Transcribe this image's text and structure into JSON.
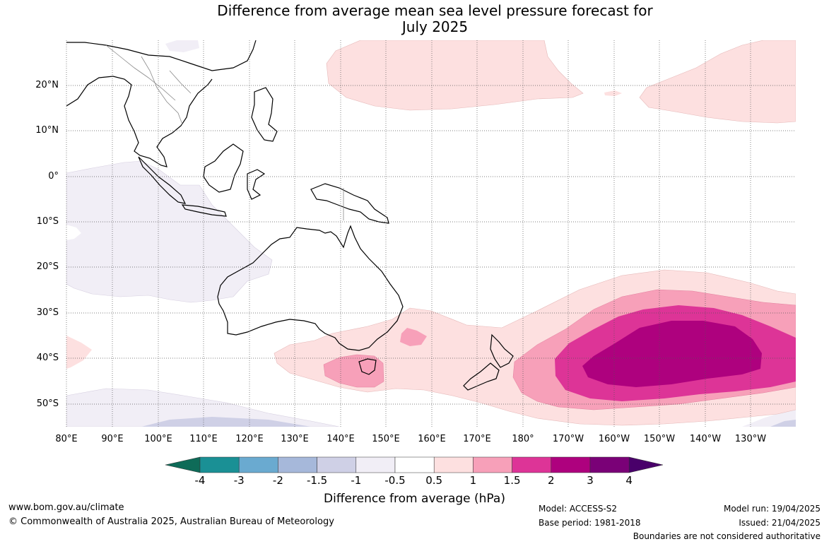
{
  "title_line1": "Difference from average mean sea level pressure forecast for",
  "title_line2": "July 2025",
  "lat_labels": [
    "20°N",
    "10°N",
    "0°",
    "10°S",
    "20°S",
    "30°S",
    "40°S",
    "50°S"
  ],
  "lon_labels": [
    "80°E",
    "90°E",
    "100°E",
    "110°E",
    "120°E",
    "130°E",
    "140°E",
    "150°E",
    "160°E",
    "170°E",
    "180°",
    "170°W",
    "160°W",
    "150°W",
    "140°W",
    "130°W"
  ],
  "colorbar": {
    "ticks": [
      "-4",
      "-3",
      "-2",
      "-1.5",
      "-1",
      "-0.5",
      "0.5",
      "1",
      "1.5",
      "2",
      "3",
      "4"
    ],
    "colors": [
      "#0e6b58",
      "#1a9095",
      "#6aaad0",
      "#a6b8da",
      "#cfd0e6",
      "#f1eef6",
      "#ffffff",
      "#fde0e0",
      "#f7a0b9",
      "#dd3497",
      "#ae017e",
      "#7a0177",
      "#49006a"
    ],
    "label": "Difference from average (hPa)"
  },
  "footer": {
    "website": "www.bom.gov.au/climate",
    "copyright": "© Commonwealth of Australia 2025, Australian Bureau of Meteorology",
    "model": "Model: ACCESS-S2",
    "base_period": "Base period: 1981-2018",
    "model_run": "Model run: 19/04/2025",
    "issued": "Issued: 21/04/2025",
    "disclaimer": "Boundaries are not considered authoritative"
  }
}
